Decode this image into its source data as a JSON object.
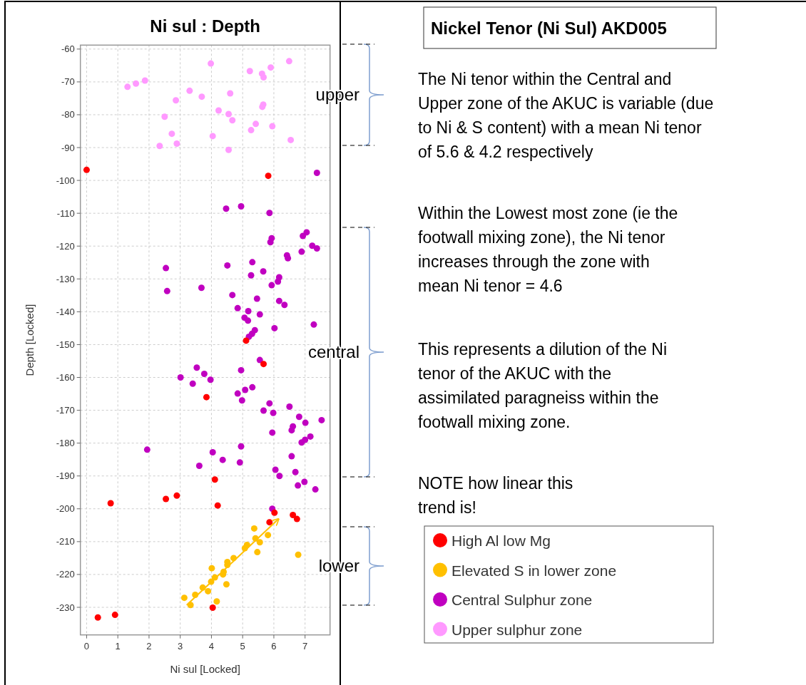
{
  "chart_data": {
    "type": "scatter",
    "title": "Ni sul : Depth",
    "xlabel": "Ni sul [Locked]",
    "ylabel": "Depth [Locked]",
    "xlim": [
      -0.2,
      7.8
    ],
    "ylim": [
      -238.4,
      -58.8
    ],
    "xticks": [
      0,
      1,
      2,
      3,
      4,
      5,
      6,
      7
    ],
    "yticks": [
      -60,
      -70,
      -80,
      -90,
      -100,
      -110,
      -120,
      -130,
      -140,
      -150,
      -160,
      -170,
      -180,
      -190,
      -200,
      -210,
      -220,
      -230
    ],
    "grid": true,
    "legend": "bottom right",
    "marker": "circle",
    "series": [
      {
        "name": "Upper sulphur zone",
        "color": "#ff99ff",
        "x": [
          3.98,
          5.23,
          5.62,
          5.67,
          5.9,
          6.49,
          1.31,
          1.58,
          1.87,
          3.3,
          3.69,
          4.6,
          2.86,
          5.66,
          5.63,
          4.23,
          4.55,
          4.67,
          2.5,
          5.42,
          5.27,
          5.95,
          2.73,
          4.04,
          2.34,
          2.89,
          4.55,
          6.54
        ],
        "values": [
          -64.4,
          -66.7,
          -67.5,
          -68.6,
          -65.6,
          -63.7,
          -71.5,
          -70.5,
          -69.6,
          -72.7,
          -74.5,
          -73.5,
          -75.6,
          -76.9,
          -77.6,
          -78.7,
          -79.8,
          -81.7,
          -80.6,
          -82.8,
          -84.7,
          -83.5,
          -85.8,
          -86.5,
          -89.5,
          -88.8,
          -90.7,
          -87.7
        ]
      },
      {
        "name": "Central Sulphur zone",
        "color": "#c000c0",
        "x": [
          7.38,
          4.47,
          4.95,
          5.86,
          5.93,
          5.89,
          6.93,
          7.05,
          7.23,
          7.38,
          6.89,
          6.42,
          6.45,
          2.54,
          4.51,
          5.31,
          5.27,
          5.66,
          6.17,
          6.13,
          5.93,
          2.58,
          3.68,
          4.67,
          5.46,
          6.17,
          6.34,
          4.84,
          5.18,
          5.55,
          5.06,
          5.17,
          6.02,
          7.28,
          5.39,
          5.3,
          5.2,
          5.55,
          3.53,
          3.77,
          3.97,
          3.01,
          3.4,
          4.95,
          4.84,
          5.08,
          5.31,
          4.98,
          5.67,
          5.86,
          5.98,
          6.5,
          6.81,
          7.01,
          7.53,
          6.61,
          6.57,
          5.95,
          7.17,
          7.0,
          6.89,
          1.94,
          4.95,
          4.04,
          4.36,
          4.91,
          3.61,
          6.57,
          6.05,
          6.18,
          6.69,
          6.77,
          6.98,
          7.33,
          5.95
        ],
        "values": [
          -97.7,
          -108.6,
          -107.9,
          -109.9,
          -117.6,
          -118.8,
          -116.9,
          -115.8,
          -119.9,
          -120.7,
          -121.7,
          -122.8,
          -123.7,
          -126.7,
          -125.9,
          -124.9,
          -128.9,
          -127.7,
          -129.5,
          -130.8,
          -131.9,
          -133.7,
          -132.7,
          -134.9,
          -136.0,
          -136.7,
          -137.9,
          -138.9,
          -139.8,
          -140.8,
          -141.8,
          -142.7,
          -145.0,
          -143.9,
          -145.6,
          -146.7,
          -147.6,
          -154.7,
          -157.0,
          -158.9,
          -160.7,
          -160.0,
          -161.9,
          -157.8,
          -164.9,
          -163.8,
          -163.0,
          -167.0,
          -170.1,
          -167.9,
          -170.8,
          -168.9,
          -172.0,
          -173.8,
          -173.0,
          -174.9,
          -176.1,
          -176.8,
          -178.0,
          -179.0,
          -179.8,
          -182.0,
          -181.0,
          -182.8,
          -185.1,
          -185.9,
          -186.9,
          -184.0,
          -188.1,
          -190.0,
          -188.8,
          -192.9,
          -191.8,
          -194.1,
          -200.0
        ]
      },
      {
        "name": "Elevated S in lower zone",
        "color": "#ffc000",
        "x": [
          5.37,
          5.81,
          5.41,
          5.55,
          5.14,
          5.07,
          5.47,
          6.78,
          4.71,
          4.51,
          4.51,
          4.01,
          4.37,
          4.39,
          4.11,
          3.99,
          4.48,
          3.72,
          3.89,
          3.48,
          3.13,
          4.17,
          3.33
        ],
        "values": [
          -206.0,
          -208.0,
          -209.0,
          -210.2,
          -211.0,
          -212.0,
          -213.2,
          -214.0,
          -215.0,
          -216.2,
          -217.1,
          -218.1,
          -220.0,
          -219.2,
          -220.9,
          -222.2,
          -223.0,
          -224.0,
          -225.1,
          -226.2,
          -227.1,
          -228.2,
          -229.3
        ]
      },
      {
        "name": "High Al low Mg",
        "color": "#ff0000",
        "x": [
          0.0,
          5.82,
          5.11,
          5.67,
          3.84,
          4.11,
          0.77,
          2.54,
          2.89,
          4.2,
          6.02,
          6.61,
          6.74,
          5.86,
          0.36,
          0.91,
          4.04
        ],
        "values": [
          -96.8,
          -98.6,
          -148.8,
          -155.9,
          -166.0,
          -191.1,
          -198.3,
          -197.0,
          -196.0,
          -199.0,
          -201.2,
          -201.9,
          -203.1,
          -204.1,
          -233.1,
          -232.3,
          -230.1
        ]
      },
      {
        "type": "line",
        "color": "#ffc000",
        "marker": "none",
        "x": [
          3.22,
          6.15
        ],
        "values": [
          -229.2,
          -203.1
        ]
      }
    ],
    "annotations": [
      "Nickel Tenor (Ni Sul) AKD005",
      "The Ni tenor within the Central and\nUpper zone of the AKUC is variable (due\nto Ni & S content) with a mean Ni tenor\nof 5.6 & 4.2 respectively",
      "Within the Lowest most zone (ie the\nfootwall mixing zone), the Ni tenor\nincreases through the zone with\nmean Ni tenor = 4.6",
      "This represents a dilution of the Ni\ntenor of the AKUC with the\nassimilated paragneiss within the\nfootwall mixing zone.",
      "NOTE how linear this\ntrend is!",
      "upper",
      "central",
      "lower"
    ]
  }
}
